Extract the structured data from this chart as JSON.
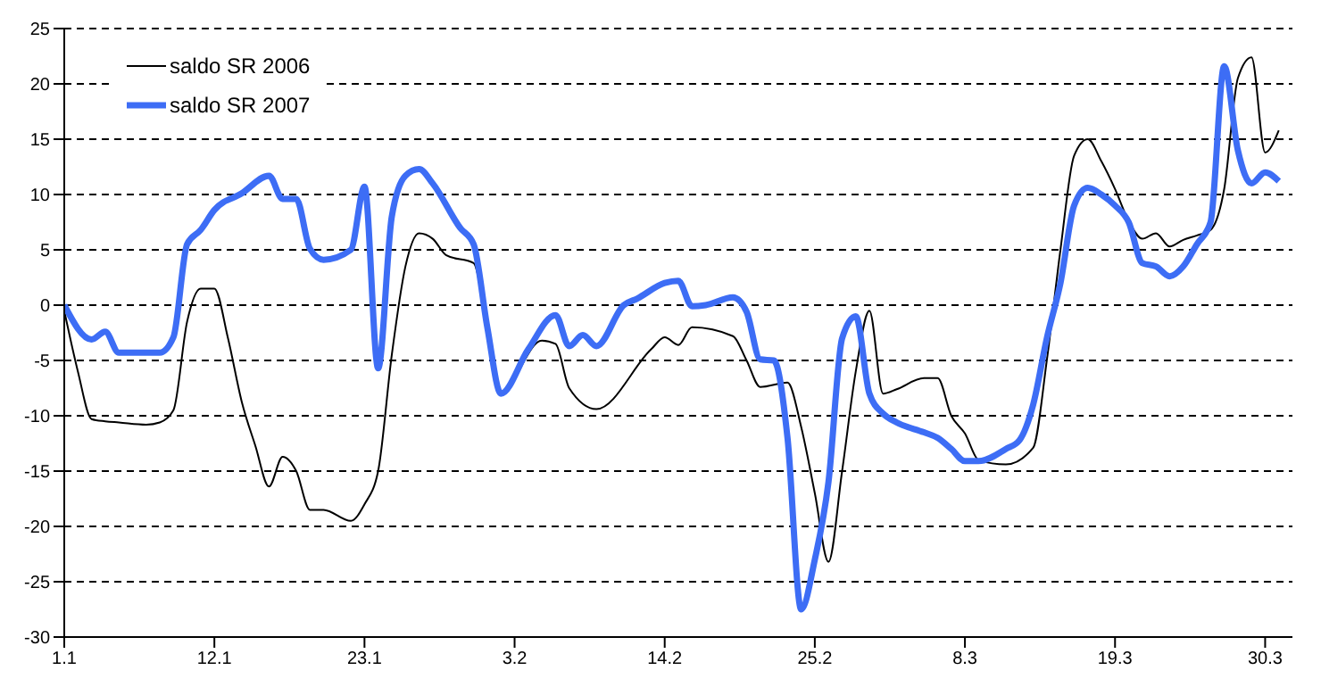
{
  "chart_data": {
    "type": "line",
    "legend": "top left",
    "grid": "y",
    "marker": "none",
    "line_style": "solid",
    "xlim": [
      "--01-01",
      "--04-01"
    ],
    "xticks": [
      {
        "value": "--01-01",
        "label": "1.1"
      },
      {
        "value": "--01-12",
        "label": "12.1"
      },
      {
        "value": "--01-23",
        "label": "23.1"
      },
      {
        "value": "--02-03",
        "label": "3.2"
      },
      {
        "value": "--02-14",
        "label": "14.2"
      },
      {
        "value": "--02-25",
        "label": "25.2"
      },
      {
        "value": "--03-08",
        "label": "8.3"
      },
      {
        "value": "--03-19",
        "label": "19.3"
      },
      {
        "value": "--03-30",
        "label": "30.3"
      }
    ],
    "ylim": [
      -30,
      25
    ],
    "yticks": [
      -30,
      -25,
      -20,
      -15,
      -10,
      -5,
      0,
      5,
      10,
      15,
      20,
      25
    ],
    "series": [
      {
        "name": "saldo SR 2006",
        "color": "#000000",
        "x": [
          "--01-01",
          "--01-02",
          "--01-03",
          "--01-04",
          "--01-05",
          "--01-07",
          "--01-08",
          "--01-09",
          "--01-10",
          "--01-11",
          "--01-12",
          "--01-13",
          "--01-14",
          "--01-15",
          "--01-16",
          "--01-17",
          "--01-18",
          "--01-19",
          "--01-20",
          "--01-22",
          "--01-23",
          "--01-24",
          "--01-25",
          "--01-26",
          "--01-27",
          "--01-28",
          "--01-29",
          "--01-31",
          "--02-01",
          "--02-02",
          "--02-05",
          "--02-06",
          "--02-07",
          "--02-09",
          "--02-13",
          "--02-14",
          "--02-15",
          "--02-16",
          "--02-19",
          "--02-20",
          "--02-21",
          "--02-23",
          "--02-24",
          "--02-25",
          "--02-26",
          "--02-27",
          "--02-28",
          "--03-01",
          "--03-02",
          "--03-03",
          "--03-05",
          "--03-06",
          "--03-07",
          "--03-08",
          "--03-09",
          "--03-11",
          "--03-13",
          "--03-14",
          "--03-15",
          "--03-16",
          "--03-17",
          "--03-18",
          "--03-19",
          "--03-20",
          "--03-21",
          "--03-22",
          "--03-23",
          "--03-24",
          "--03-25",
          "--03-26",
          "--03-27",
          "--03-28",
          "--03-29",
          "--03-30",
          "--03-31"
        ],
        "values": [
          -0.5,
          -6,
          -10.3,
          -10.5,
          -10.6,
          -10.8,
          -10.6,
          -9.5,
          -1.5,
          1.5,
          1.5,
          -3,
          -8.7,
          -12.7,
          -16.4,
          -13.7,
          -15,
          -18.5,
          -18.5,
          -19.5,
          -18,
          -15,
          -4.5,
          3.5,
          6.5,
          6,
          4.5,
          3.8,
          -2,
          -7.8,
          -3.2,
          -3.5,
          -7.5,
          -9.4,
          -4,
          -2.9,
          -3.6,
          -2,
          -2.8,
          -5,
          -7.4,
          -7,
          -11,
          -17,
          -23.2,
          -15,
          -6,
          -0.5,
          -8,
          -7.6,
          -6.6,
          -6.6,
          -10,
          -11.6,
          -14,
          -14.4,
          -12.9,
          -5,
          5,
          13.5,
          15,
          13,
          10.5,
          7.6,
          6,
          6.5,
          5.3,
          5.9,
          6.3,
          6.8,
          10.5,
          20.5,
          22.4,
          13.8,
          15.8
        ]
      },
      {
        "name": "saldo SR 2007",
        "color": "#3d6df5",
        "x": [
          "--01-01",
          "--01-03",
          "--01-04",
          "--01-05",
          "--01-08",
          "--01-09",
          "--01-10",
          "--01-11",
          "--01-12",
          "--01-14",
          "--01-16",
          "--01-17",
          "--01-18",
          "--01-19",
          "--01-20",
          "--01-22",
          "--01-23",
          "--01-24",
          "--01-25",
          "--01-26",
          "--01-27",
          "--01-28",
          "--01-30",
          "--01-31",
          "--02-01",
          "--02-02",
          "--02-04",
          "--02-06",
          "--02-07",
          "--02-08",
          "--02-09",
          "--02-11",
          "--02-12",
          "--02-14",
          "--02-15",
          "--02-16",
          "--02-17",
          "--02-19",
          "--02-20",
          "--02-21",
          "--02-22",
          "--02-23",
          "--02-24",
          "--02-25",
          "--02-26",
          "--02-27",
          "--02-28",
          "--03-01",
          "--03-02",
          "--03-03",
          "--03-05",
          "--03-06",
          "--03-07",
          "--03-08",
          "--03-09",
          "--03-11",
          "--03-12",
          "--03-13",
          "--03-14",
          "--03-15",
          "--03-16",
          "--03-17",
          "--03-18",
          "--03-19",
          "--03-20",
          "--03-21",
          "--03-22",
          "--03-23",
          "--03-24",
          "--03-25",
          "--03-26",
          "--03-27",
          "--03-28",
          "--03-29",
          "--03-30",
          "--03-31"
        ],
        "values": [
          0,
          -3.1,
          -2.4,
          -4.3,
          -4.3,
          -2.9,
          5.5,
          6.8,
          8.6,
          10.1,
          11.7,
          9.6,
          9.6,
          5.1,
          4.1,
          5,
          10.7,
          -5.7,
          8,
          11.7,
          12.3,
          11,
          7,
          5.5,
          -2,
          -8,
          -4,
          -0.9,
          -3.7,
          -2.7,
          -3.7,
          0,
          0.6,
          2,
          2.2,
          -0.1,
          0,
          0.7,
          -0.6,
          -4.9,
          -5,
          -12,
          -27.5,
          -23,
          -16,
          -3,
          -1,
          -8,
          -9.8,
          -10.6,
          -11.5,
          -12,
          -13,
          -14.1,
          -14.1,
          -13,
          -12.2,
          -9,
          -3,
          2,
          9,
          10.6,
          10,
          9,
          7.5,
          3.8,
          3.5,
          2.6,
          3.5,
          5.5,
          7.5,
          21.6,
          14,
          11,
          12,
          11.2
        ]
      }
    ]
  }
}
